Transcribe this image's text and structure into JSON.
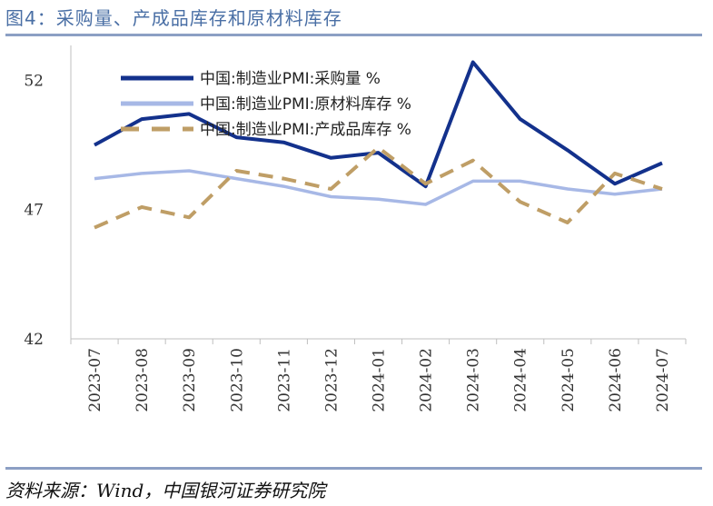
{
  "header": {
    "title": "图4：采购量、产成品库存和原材料库存"
  },
  "footer": {
    "source": "资料来源：Wind，中国银河证券研究院"
  },
  "chart_data": {
    "type": "line",
    "title": "图4：采购量、产成品库存和原材料库存",
    "xlabel": "",
    "ylabel": "",
    "ylim": [
      42,
      53
    ],
    "yticks": [
      42,
      47,
      52
    ],
    "categories": [
      "2023-07",
      "2023-08",
      "2023-09",
      "2023-10",
      "2023-11",
      "2023-12",
      "2024-01",
      "2024-02",
      "2024-03",
      "2024-04",
      "2024-05",
      "2024-06",
      "2024-07"
    ],
    "legend_position": "top-left",
    "series": [
      {
        "name": "中国:制造业PMI:采购量 %",
        "color": "#13318c",
        "style": "solid-thick",
        "values": [
          49.5,
          50.5,
          50.7,
          49.8,
          49.6,
          49.0,
          49.2,
          47.9,
          52.7,
          50.5,
          49.3,
          48.0,
          48.8
        ]
      },
      {
        "name": "中国:制造业PMI:原材料库存 %",
        "color": "#a7b8e6",
        "style": "solid",
        "values": [
          48.2,
          48.4,
          48.5,
          48.2,
          47.9,
          47.5,
          47.4,
          47.2,
          48.1,
          48.1,
          47.8,
          47.6,
          47.8
        ]
      },
      {
        "name": "中国:制造业PMI:产成品库存 %",
        "color": "#bf9e66",
        "style": "dashed",
        "values": [
          46.3,
          47.1,
          46.7,
          48.5,
          48.2,
          47.8,
          49.4,
          48.0,
          48.9,
          47.3,
          46.5,
          48.4,
          47.8
        ]
      }
    ]
  }
}
